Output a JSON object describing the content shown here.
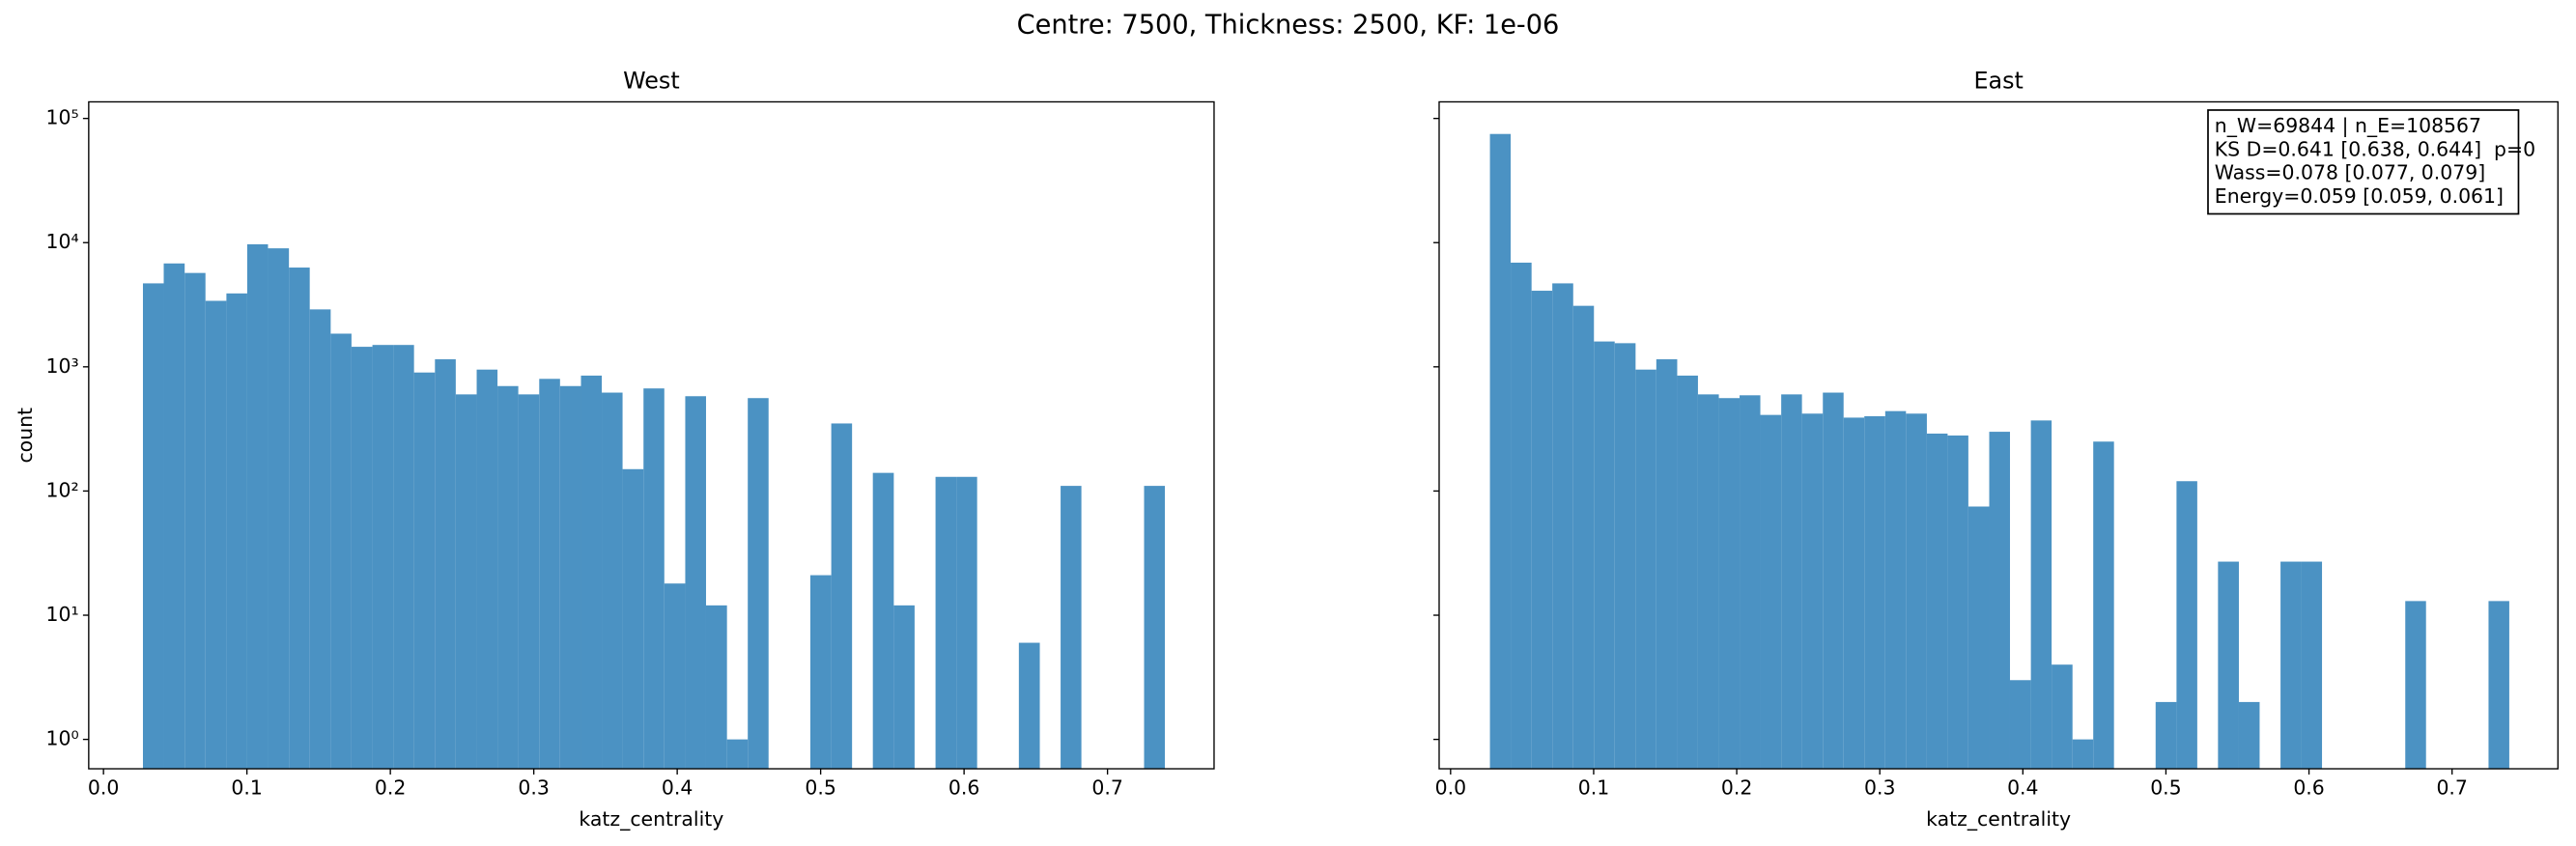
{
  "title": "Centre: 7500, Thickness: 2500, KF: 1e-06",
  "chart_data": [
    {
      "type": "histogram",
      "title": "West",
      "x_label": "katz_centrality",
      "y_label": "count",
      "log_y": true,
      "color": "#4b92c3",
      "bins": [
        0.0275,
        0.042,
        0.0566,
        0.0711,
        0.0857,
        0.1002,
        0.1147,
        0.1293,
        0.1438,
        0.1584,
        0.1729,
        0.1875,
        0.202,
        0.2165,
        0.2311,
        0.2456,
        0.2602,
        0.2747,
        0.2892,
        0.3038,
        0.3183,
        0.3329,
        0.3474,
        0.3619,
        0.3765,
        0.391,
        0.4056,
        0.4201,
        0.4347,
        0.4492,
        0.4637,
        0.4783,
        0.4928,
        0.5074,
        0.5219,
        0.5364,
        0.551,
        0.5655,
        0.5801,
        0.5946,
        0.6091,
        0.6237,
        0.6382,
        0.6528,
        0.6673,
        0.6818,
        0.6964,
        0.7109,
        0.7255,
        0.74
      ],
      "values": [
        4700,
        6800,
        5700,
        3400,
        3900,
        9700,
        9000,
        6300,
        2900,
        1850,
        1450,
        1500,
        1500,
        900,
        1150,
        600,
        950,
        700,
        600,
        800,
        700,
        850,
        620,
        150,
        670,
        18,
        580,
        12,
        1,
        560,
        0,
        0,
        21,
        350,
        0,
        140,
        12,
        0,
        130,
        130,
        0,
        0,
        6,
        0,
        110,
        0,
        0,
        0,
        110
      ],
      "xlim": [
        -0.0103,
        0.7743
      ],
      "ylim": [
        0.58,
        136000
      ],
      "xticks": [
        {
          "value": 0,
          "label": "0.0"
        },
        0.1,
        0.2,
        0.3,
        0.4,
        0.5,
        0.6,
        0.7
      ],
      "yticks": [
        {
          "value": 1,
          "label": "10⁰"
        },
        {
          "value": 10,
          "label": "10¹"
        },
        {
          "value": 100,
          "label": "10²"
        },
        {
          "value": 1000,
          "label": "10³"
        },
        {
          "value": 10000,
          "label": "10⁴"
        },
        {
          "value": 100000,
          "label": "10⁵"
        }
      ]
    },
    {
      "type": "histogram",
      "title": "East",
      "x_label": "katz_centrality",
      "log_y": true,
      "sharey": true,
      "color": "#4b92c3",
      "bins": [
        0.0275,
        0.042,
        0.0566,
        0.0711,
        0.0857,
        0.1002,
        0.1147,
        0.1293,
        0.1438,
        0.1584,
        0.1729,
        0.1875,
        0.202,
        0.2165,
        0.2311,
        0.2456,
        0.2602,
        0.2747,
        0.2892,
        0.3038,
        0.3183,
        0.3329,
        0.3474,
        0.3619,
        0.3765,
        0.391,
        0.4056,
        0.4201,
        0.4347,
        0.4492,
        0.4637,
        0.4783,
        0.4928,
        0.5074,
        0.5219,
        0.5364,
        0.551,
        0.5655,
        0.5801,
        0.5946,
        0.6091,
        0.6237,
        0.6382,
        0.6528,
        0.6673,
        0.6818,
        0.6964,
        0.7109,
        0.7255,
        0.74
      ],
      "values": [
        75000,
        6900,
        4100,
        4700,
        3100,
        1600,
        1550,
        950,
        1150,
        850,
        600,
        560,
        590,
        410,
        600,
        420,
        620,
        390,
        400,
        440,
        420,
        290,
        280,
        75,
        300,
        3,
        370,
        4,
        1,
        250,
        0,
        0,
        2,
        120,
        0,
        27,
        2,
        0,
        27,
        27,
        0,
        0,
        0,
        0,
        13,
        0,
        0,
        0,
        13
      ],
      "xlim": [
        -0.008,
        0.774
      ],
      "xticks": [
        {
          "value": 0,
          "label": "0.0"
        },
        0.1,
        0.2,
        0.3,
        0.4,
        0.5,
        0.6,
        0.7
      ],
      "annotations": [
        "n_W=69844 | n_E=108567",
        "KS D=0.641 [0.638, 0.644]  p=0",
        "Wass=0.078 [0.077, 0.079]",
        "Energy=0.059 [0.059, 0.061]"
      ]
    }
  ]
}
